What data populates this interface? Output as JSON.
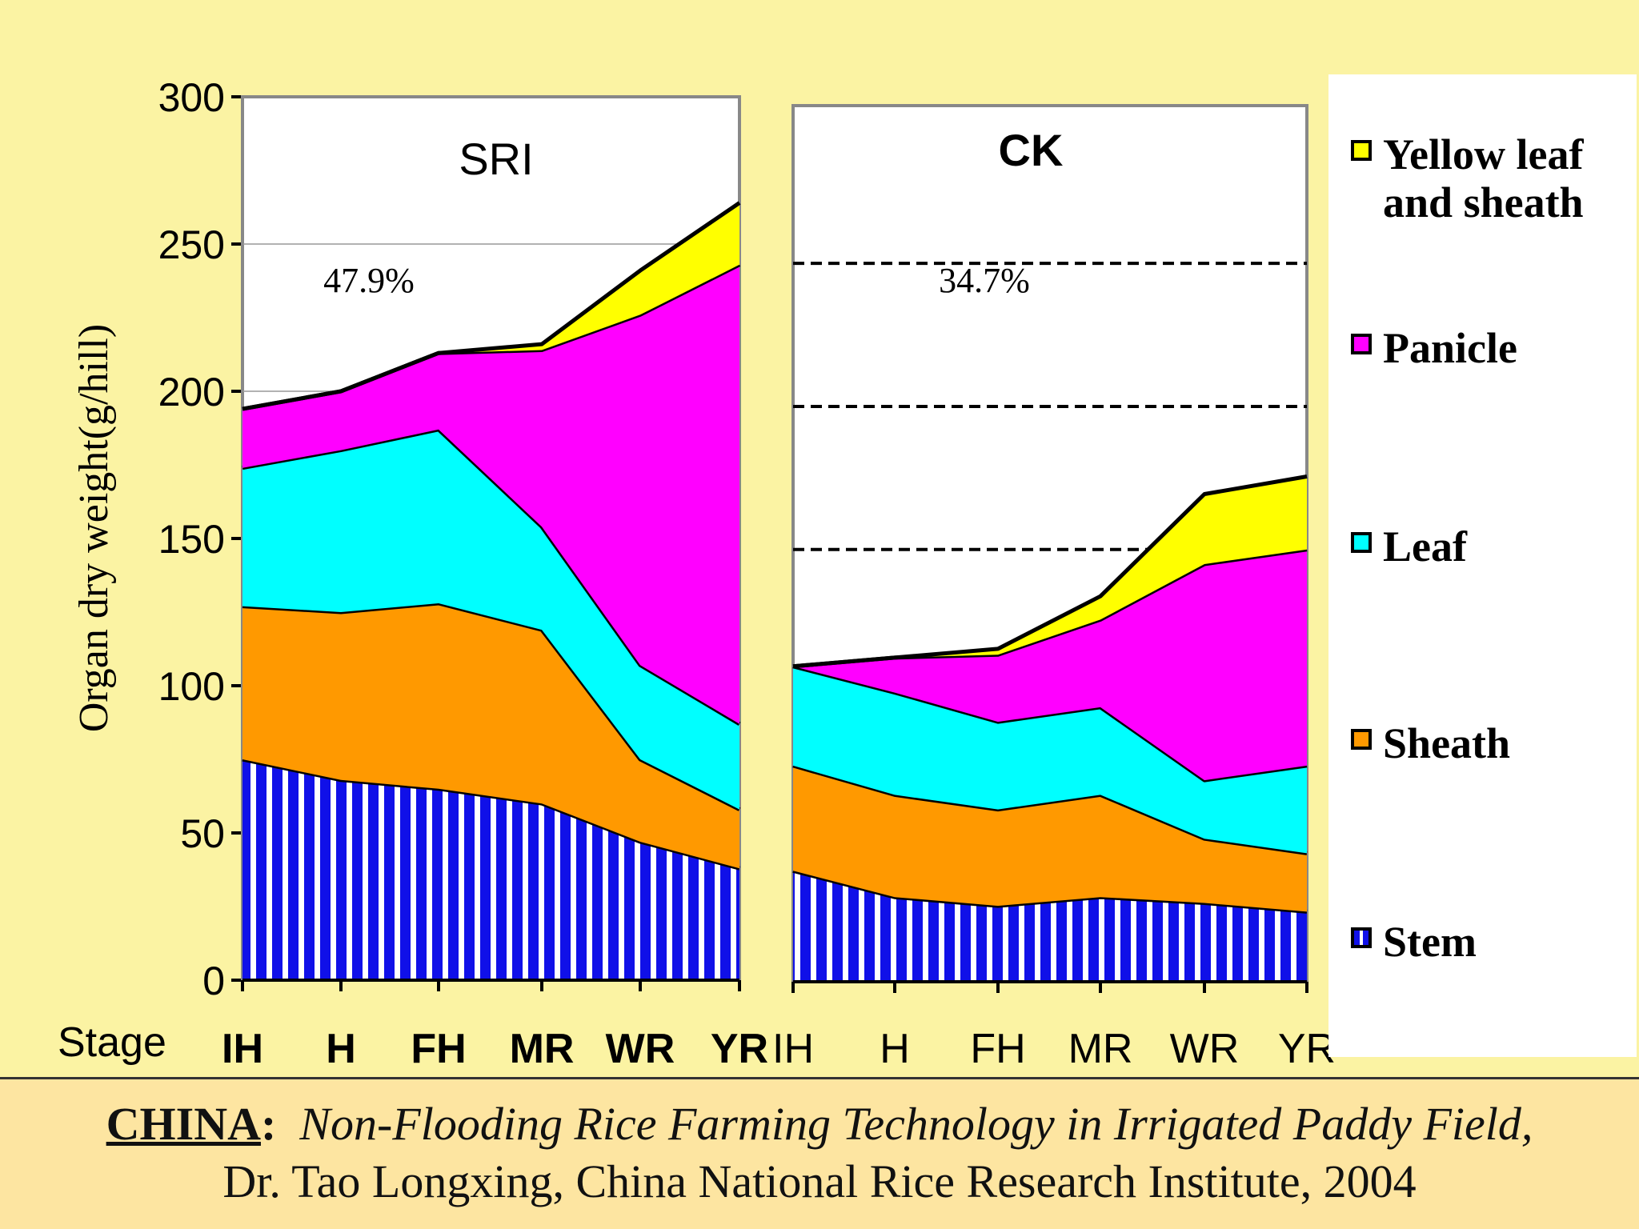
{
  "chart_data": {
    "type": "area",
    "y_axis": {
      "label": "Organ dry weight(g/hill)",
      "ylim": [
        0,
        300
      ],
      "ticks": [
        "0",
        "50",
        "100",
        "150",
        "200",
        "250",
        "300"
      ]
    },
    "x_axis_prefix": "Stage",
    "categories": [
      "IH",
      "H",
      "FH",
      "MR",
      "WR",
      "YR"
    ],
    "panels": [
      {
        "title": "SRI",
        "annotation": "47.9%",
        "gridlines": [
          200,
          250
        ],
        "series": [
          {
            "name": "Stem",
            "values": [
              75,
              68,
              65,
              60,
              47,
              38
            ]
          },
          {
            "name": "Sheath",
            "values": [
              52,
              57,
              63,
              59,
              28,
              20
            ]
          },
          {
            "name": "Leaf",
            "values": [
              47,
              55,
              59,
              35,
              32,
              29
            ]
          },
          {
            "name": "Panicle",
            "values": [
              20,
              20,
              26,
              60,
              119,
              156
            ]
          },
          {
            "name": "Yellow leaf and sheath",
            "values": [
              0,
              0,
              0,
              2,
              15,
              21
            ]
          }
        ]
      },
      {
        "title": "CK",
        "annotation": "34.7%",
        "gridlines": [
          148,
          197,
          246
        ],
        "series": [
          {
            "name": "Stem",
            "values": [
              38,
              29,
              26,
              29,
              27,
              24
            ]
          },
          {
            "name": "Sheath",
            "values": [
              36,
              35,
              33,
              35,
              22,
              20
            ]
          },
          {
            "name": "Leaf",
            "values": [
              34,
              35,
              30,
              30,
              20,
              30
            ]
          },
          {
            "name": "Panicle",
            "values": [
              0,
              12,
              23,
              30,
              74,
              74
            ]
          },
          {
            "name": "Yellow leaf and sheath",
            "values": [
              0,
              0,
              2,
              8,
              24,
              25
            ]
          }
        ]
      }
    ],
    "legend": [
      {
        "label": "Yellow leaf\nand sheath",
        "color": "#ffff00"
      },
      {
        "label": "Panicle",
        "color": "#ff00ff"
      },
      {
        "label": "Leaf",
        "color": "#00ffff"
      },
      {
        "label": "Sheath",
        "color": "#ff9900"
      },
      {
        "label": "Stem",
        "color": "#1010e8"
      }
    ]
  },
  "colors": {
    "background": "#fbf3a3",
    "stem": "#1010e8",
    "sheath": "#ff9900",
    "leaf": "#00ffff",
    "panicle": "#ff00ff",
    "yellow": "#ffff00"
  },
  "caption": {
    "country": "CHINA",
    "colon": ":",
    "title": "Non-Flooding Rice Farming Technology in Irrigated Paddy Field,",
    "line2": "Dr. Tao Longxing, China National Rice Research Institute, 2004"
  }
}
